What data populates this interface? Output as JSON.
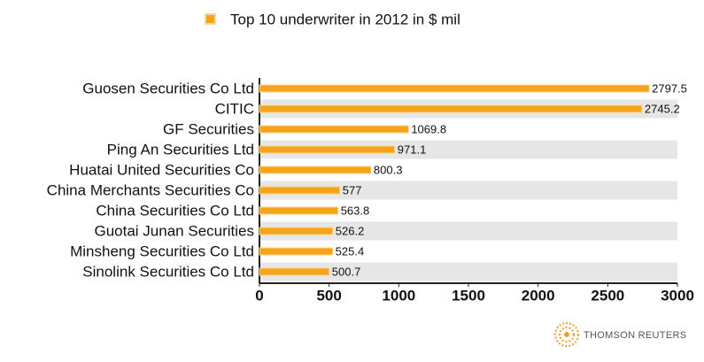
{
  "chart_data": {
    "type": "bar",
    "orientation": "horizontal",
    "categories": [
      "Guosen Securities Co Ltd",
      "CITIC",
      "GF Securities",
      "Ping An Securities Ltd",
      "Huatai United Securities Co",
      "China Merchants Securities Co",
      "China Securities Co Ltd",
      "Guotai Junan Securities",
      "Minsheng Securities Co Ltd",
      "Sinolink Securities Co Ltd"
    ],
    "series": [
      {
        "name": "Top 10 underwriter in 2012 in $ mil",
        "color": "#f5a31a",
        "values": [
          2797.5,
          2745.2,
          1069.8,
          971.1,
          800.3,
          577,
          563.8,
          526.2,
          525.4,
          500.7
        ]
      }
    ],
    "xlim": [
      0,
      3000
    ],
    "xticks": [
      0,
      500,
      1000,
      1500,
      2000,
      2500,
      3000
    ],
    "legend": "top",
    "logo": "THOMSON REUTERS"
  }
}
